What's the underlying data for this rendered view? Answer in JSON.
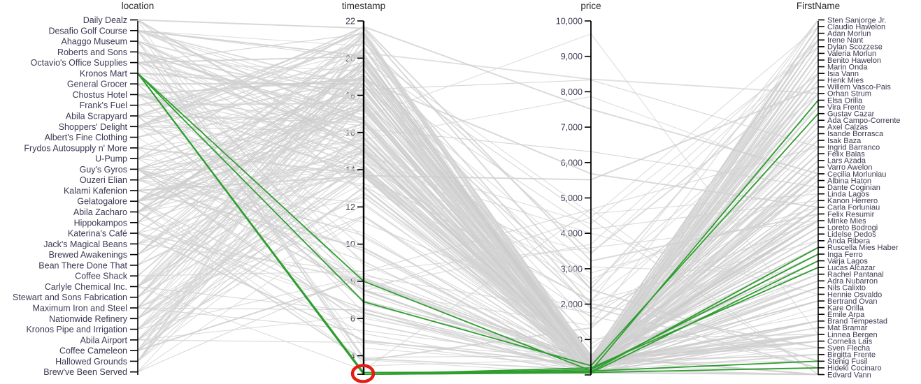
{
  "chart_data": {
    "type": "parallel-coordinates",
    "title": "",
    "highlight_color": "#2f9e2f",
    "background_line_color": "#d2d2d2",
    "axis_color": "#000000",
    "tick_label_color": "#3e3852",
    "title_color": "#2b2b2b",
    "annotation_color": "#e51c14",
    "axes": [
      {
        "title": "location",
        "kind": "categorical",
        "categories": [
          "Daily Dealz",
          "Desafio Golf Course",
          "Ahaggo Museum",
          "Roberts and Sons",
          "Octavio's Office Supplies",
          "Kronos Mart",
          "General Grocer",
          "Chostus Hotel",
          "Frank's Fuel",
          "Abila Scrapyard",
          "Shoppers' Delight",
          "Albert's Fine Clothing",
          "Frydos Autosupply n' More",
          "U-Pump",
          "Guy's Gyros",
          "Ouzeri Elian",
          "Kalami Kafenion",
          "Gelatogalore",
          "Abila Zacharo",
          "Hippokampos",
          "Katerina's Café",
          "Jack's Magical Beans",
          "Brewed Awakenings",
          "Bean There Done That",
          "Coffee Shack",
          "Carlyle Chemical Inc.",
          "Stewart and Sons Fabrication",
          "Maximum Iron and Steel",
          "Nationwide Refinery",
          "Kronos Pipe and Irrigation",
          "Abila Airport",
          "Coffee Cameleon",
          "Hallowed Grounds",
          "Brew've Been Served"
        ]
      },
      {
        "title": "timestamp",
        "kind": "numeric",
        "min": 3,
        "max": 22,
        "ticks": [
          {
            "value": 22,
            "label": "22"
          },
          {
            "value": 20,
            "label": "20"
          },
          {
            "value": 18,
            "label": "18"
          },
          {
            "value": 16,
            "label": "16"
          },
          {
            "value": 14,
            "label": "14"
          },
          {
            "value": 12,
            "label": "12"
          },
          {
            "value": 10,
            "label": "10"
          },
          {
            "value": 8,
            "label": "8"
          },
          {
            "value": 6,
            "label": "6"
          },
          {
            "value": 4,
            "label": "4"
          },
          {
            "value": 3,
            "label": ""
          }
        ]
      },
      {
        "title": "price",
        "kind": "numeric",
        "min": 0,
        "max": 10000,
        "ticks": [
          {
            "value": 10000,
            "label": "10,000"
          },
          {
            "value": 9000,
            "label": "9,000"
          },
          {
            "value": 8000,
            "label": "8,000"
          },
          {
            "value": 7000,
            "label": "7,000"
          },
          {
            "value": 6000,
            "label": "6,000"
          },
          {
            "value": 5000,
            "label": "5,000"
          },
          {
            "value": 4000,
            "label": "4,000"
          },
          {
            "value": 3000,
            "label": "3,000"
          },
          {
            "value": 2000,
            "label": "2,000"
          },
          {
            "value": 1000,
            "label": "1,000"
          },
          {
            "value": 0,
            "label": ""
          }
        ]
      },
      {
        "title": "FirstName",
        "kind": "categorical",
        "categories": [
          "Sten Sanjorge Jr.",
          "Claudio Hawelon",
          "Adan Morlun",
          "Irene Nant",
          "Dylan Scozzese",
          "Valeria Morlun",
          "Benito Hawelon",
          "Marin Onda",
          "Isia Vann",
          "Henk Mies",
          "Willem Vasco-Pais",
          "Orhan Strum",
          "Elsa Orilla",
          "Vira Frente",
          "Gustav Cazar",
          "Ada Campo-Corrente",
          "Axel Calzas",
          "Isande Borrasca",
          "Isak Baza",
          "Ingrid Barranco",
          "Felix Balas",
          "Lars Azada",
          "Varro Awelon",
          "Cecilia Morluniau",
          "Albina Haton",
          "Dante Coginian",
          "Linda Lagos",
          "Kanon Herrero",
          "Carla Forluniau",
          "Felix Resumir",
          "Minke Mies",
          "Loreto Bodrogi",
          "Lidelse Dedos",
          "Anda Ribera",
          "Ruscella Mies Haber",
          "Inga Ferro",
          "Varja Lagos",
          "Lucas Alcazar",
          "Rachel Pantanal",
          "Adra Nubarron",
          "Nils Calixto",
          "Hennie Osvaldo",
          "Bertrand Ovan",
          "Kare Orilla",
          "Emile Arpa",
          "Brand Tempestad",
          "Mat Bramar",
          "Linnea Bergen",
          "Cornelia Lais",
          "Sven Flecha",
          "Birgitta Frente",
          "Stenig Fusil",
          "Hideki Cocinaro",
          "Edvard Vann"
        ]
      }
    ],
    "highlighted_records": [
      {
        "location": "Kronos Mart",
        "timestamp": 8.0,
        "price": 120,
        "FirstName": "Elsa Orilla"
      },
      {
        "location": "Kronos Mart",
        "timestamp": 6.9,
        "price": 260,
        "FirstName": "Gustav Cazar"
      },
      {
        "location": "Kronos Mart",
        "timestamp": 3.1,
        "price": 90,
        "FirstName": "Ruscella Mies Haber"
      },
      {
        "location": "Kronos Mart",
        "timestamp": 3.0,
        "price": 150,
        "FirstName": "Inga Ferro"
      },
      {
        "location": "Kronos Mart",
        "timestamp": 3.0,
        "price": 60,
        "FirstName": "Varja Lagos"
      },
      {
        "location": "Kronos Mart",
        "timestamp": 3.0,
        "price": 200,
        "FirstName": "Lucas Alcazar"
      },
      {
        "location": "Kronos Mart",
        "timestamp": 3.0,
        "price": 110,
        "FirstName": "Stenig Fusil"
      },
      {
        "location": "Kronos Mart",
        "timestamp": 3.0,
        "price": 70,
        "FirstName": "Hideki Cocinaro"
      }
    ],
    "background_lines": {
      "description": "dense unreadable gray record lines; most timestamps 13-22, most prices below 600 converging at bottom of price axis",
      "count": 235,
      "seed": 20
    },
    "annotation": {
      "shape": "red-circle",
      "marks": "minimum timestamp value at bottom of timestamp axis"
    }
  }
}
